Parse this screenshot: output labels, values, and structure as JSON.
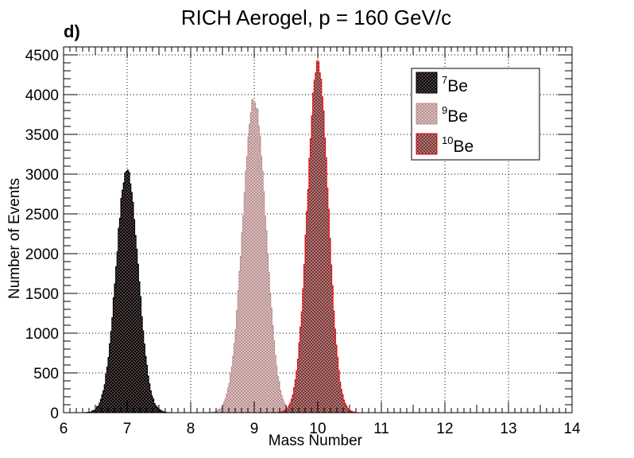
{
  "panel_label": "d)",
  "chart_data": {
    "type": "histogram",
    "title": "RICH Aerogel, p = 160 GeV/c",
    "xlabel": "Mass Number",
    "ylabel": "Number of Events",
    "xlim": [
      6,
      14
    ],
    "ylim": [
      0,
      4600
    ],
    "xticks": [
      "6",
      "7",
      "8",
      "9",
      "10",
      "11",
      "12",
      "13",
      "14"
    ],
    "yticks": [
      "0",
      "500",
      "1000",
      "1500",
      "2000",
      "2500",
      "3000",
      "3500",
      "4000",
      "4500"
    ],
    "grid": true,
    "legend_position": "top-right",
    "series": [
      {
        "name": "7Be",
        "label_sup": "7",
        "label_base": "Be",
        "center": 7.0,
        "sigma": 0.17,
        "peak": 3050,
        "range": [
          6.0,
          7.8
        ],
        "color": "#000000",
        "fill": "crosshatch-dark"
      },
      {
        "name": "9Be",
        "label_sup": "9",
        "label_base": "Be",
        "center": 9.0,
        "sigma": 0.18,
        "peak": 3950,
        "range": [
          8.2,
          9.8
        ],
        "color": "#c09090",
        "fill": "crosshatch-light"
      },
      {
        "name": "10Be",
        "label_sup": "10",
        "label_base": "Be",
        "center": 10.0,
        "sigma": 0.16,
        "peak": 4420,
        "range": [
          9.3,
          14.0
        ],
        "color": "#ff0000",
        "fill": "crosshatch-red"
      }
    ]
  }
}
